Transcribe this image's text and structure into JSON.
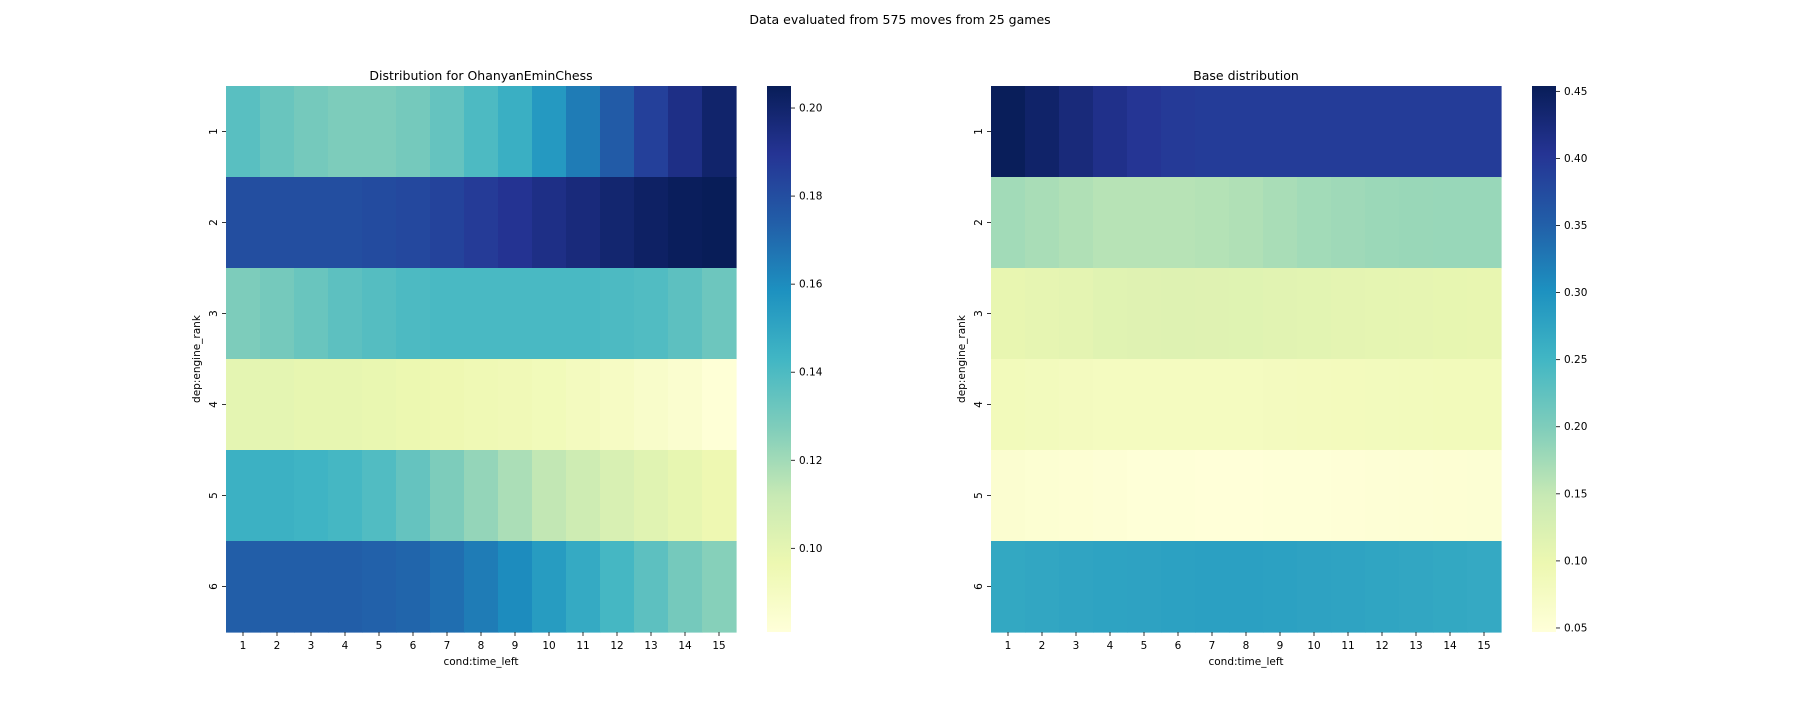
{
  "suptitle": "Data evaluated from 575 moves from 25 games",
  "colormap": [
    "#ffffd9",
    "#edf8b1",
    "#c7e9b4",
    "#7fcdbb",
    "#41b6c4",
    "#1d91c0",
    "#225ea8",
    "#253494",
    "#081d58"
  ],
  "chart_data": [
    {
      "type": "heatmap",
      "title": "Distribution for OhanyanEminChess",
      "xlabel": "cond:time_left",
      "ylabel": "dep:engine_rank",
      "x_categories": [
        "1",
        "2",
        "3",
        "4",
        "5",
        "6",
        "7",
        "8",
        "9",
        "10",
        "11",
        "12",
        "13",
        "14",
        "15"
      ],
      "y_categories": [
        "1",
        "2",
        "3",
        "4",
        "5",
        "6"
      ],
      "color_range": [
        0.081,
        0.205
      ],
      "colorbar_ticks": [
        0.1,
        0.12,
        0.14,
        0.16,
        0.18,
        0.2
      ],
      "colorbar_tick_labels": [
        "0.10",
        "0.12",
        "0.14",
        "0.16",
        "0.18",
        "0.20"
      ],
      "values": [
        [
          0.137,
          0.133,
          0.13,
          0.128,
          0.128,
          0.13,
          0.134,
          0.14,
          0.146,
          0.155,
          0.165,
          0.175,
          0.185,
          0.193,
          0.2
        ],
        [
          0.18,
          0.18,
          0.18,
          0.18,
          0.181,
          0.182,
          0.184,
          0.187,
          0.19,
          0.193,
          0.196,
          0.199,
          0.202,
          0.204,
          0.205
        ],
        [
          0.128,
          0.13,
          0.133,
          0.136,
          0.138,
          0.14,
          0.141,
          0.141,
          0.141,
          0.141,
          0.141,
          0.14,
          0.139,
          0.136,
          0.132
        ],
        [
          0.1,
          0.1,
          0.099,
          0.099,
          0.098,
          0.097,
          0.096,
          0.095,
          0.094,
          0.093,
          0.091,
          0.089,
          0.087,
          0.085,
          0.082
        ],
        [
          0.145,
          0.145,
          0.144,
          0.142,
          0.139,
          0.134,
          0.128,
          0.123,
          0.118,
          0.113,
          0.109,
          0.105,
          0.102,
          0.099,
          0.096
        ],
        [
          0.174,
          0.174,
          0.174,
          0.174,
          0.173,
          0.172,
          0.169,
          0.165,
          0.16,
          0.154,
          0.148,
          0.142,
          0.136,
          0.13,
          0.126
        ]
      ]
    },
    {
      "type": "heatmap",
      "title": "Base distribution",
      "xlabel": "cond:time_left",
      "ylabel": "dep:engine_rank",
      "x_categories": [
        "1",
        "2",
        "3",
        "4",
        "5",
        "6",
        "7",
        "8",
        "9",
        "10",
        "11",
        "12",
        "13",
        "14",
        "15"
      ],
      "y_categories": [
        "1",
        "2",
        "3",
        "4",
        "5",
        "6"
      ],
      "color_range": [
        0.047,
        0.454
      ],
      "colorbar_ticks": [
        0.05,
        0.1,
        0.15,
        0.2,
        0.25,
        0.3,
        0.35,
        0.4,
        0.45
      ],
      "colorbar_tick_labels": [
        "0.05",
        "0.10",
        "0.15",
        "0.20",
        "0.25",
        "0.30",
        "0.35",
        "0.40",
        "0.45"
      ],
      "values": [
        [
          0.452,
          0.44,
          0.425,
          0.412,
          0.402,
          0.396,
          0.394,
          0.394,
          0.394,
          0.394,
          0.394,
          0.394,
          0.394,
          0.394,
          0.394
        ],
        [
          0.175,
          0.17,
          0.165,
          0.16,
          0.16,
          0.16,
          0.162,
          0.165,
          0.17,
          0.175,
          0.177,
          0.18,
          0.181,
          0.182,
          0.182
        ],
        [
          0.105,
          0.107,
          0.11,
          0.115,
          0.117,
          0.118,
          0.117,
          0.116,
          0.114,
          0.112,
          0.11,
          0.108,
          0.107,
          0.106,
          0.105
        ],
        [
          0.085,
          0.083,
          0.08,
          0.079,
          0.079,
          0.079,
          0.079,
          0.079,
          0.08,
          0.081,
          0.082,
          0.083,
          0.084,
          0.085,
          0.085
        ],
        [
          0.058,
          0.056,
          0.054,
          0.052,
          0.05,
          0.049,
          0.048,
          0.048,
          0.049,
          0.05,
          0.051,
          0.052,
          0.053,
          0.054,
          0.055
        ],
        [
          0.27,
          0.272,
          0.275,
          0.277,
          0.278,
          0.28,
          0.281,
          0.281,
          0.28,
          0.278,
          0.276,
          0.274,
          0.272,
          0.27,
          0.268
        ]
      ]
    }
  ]
}
